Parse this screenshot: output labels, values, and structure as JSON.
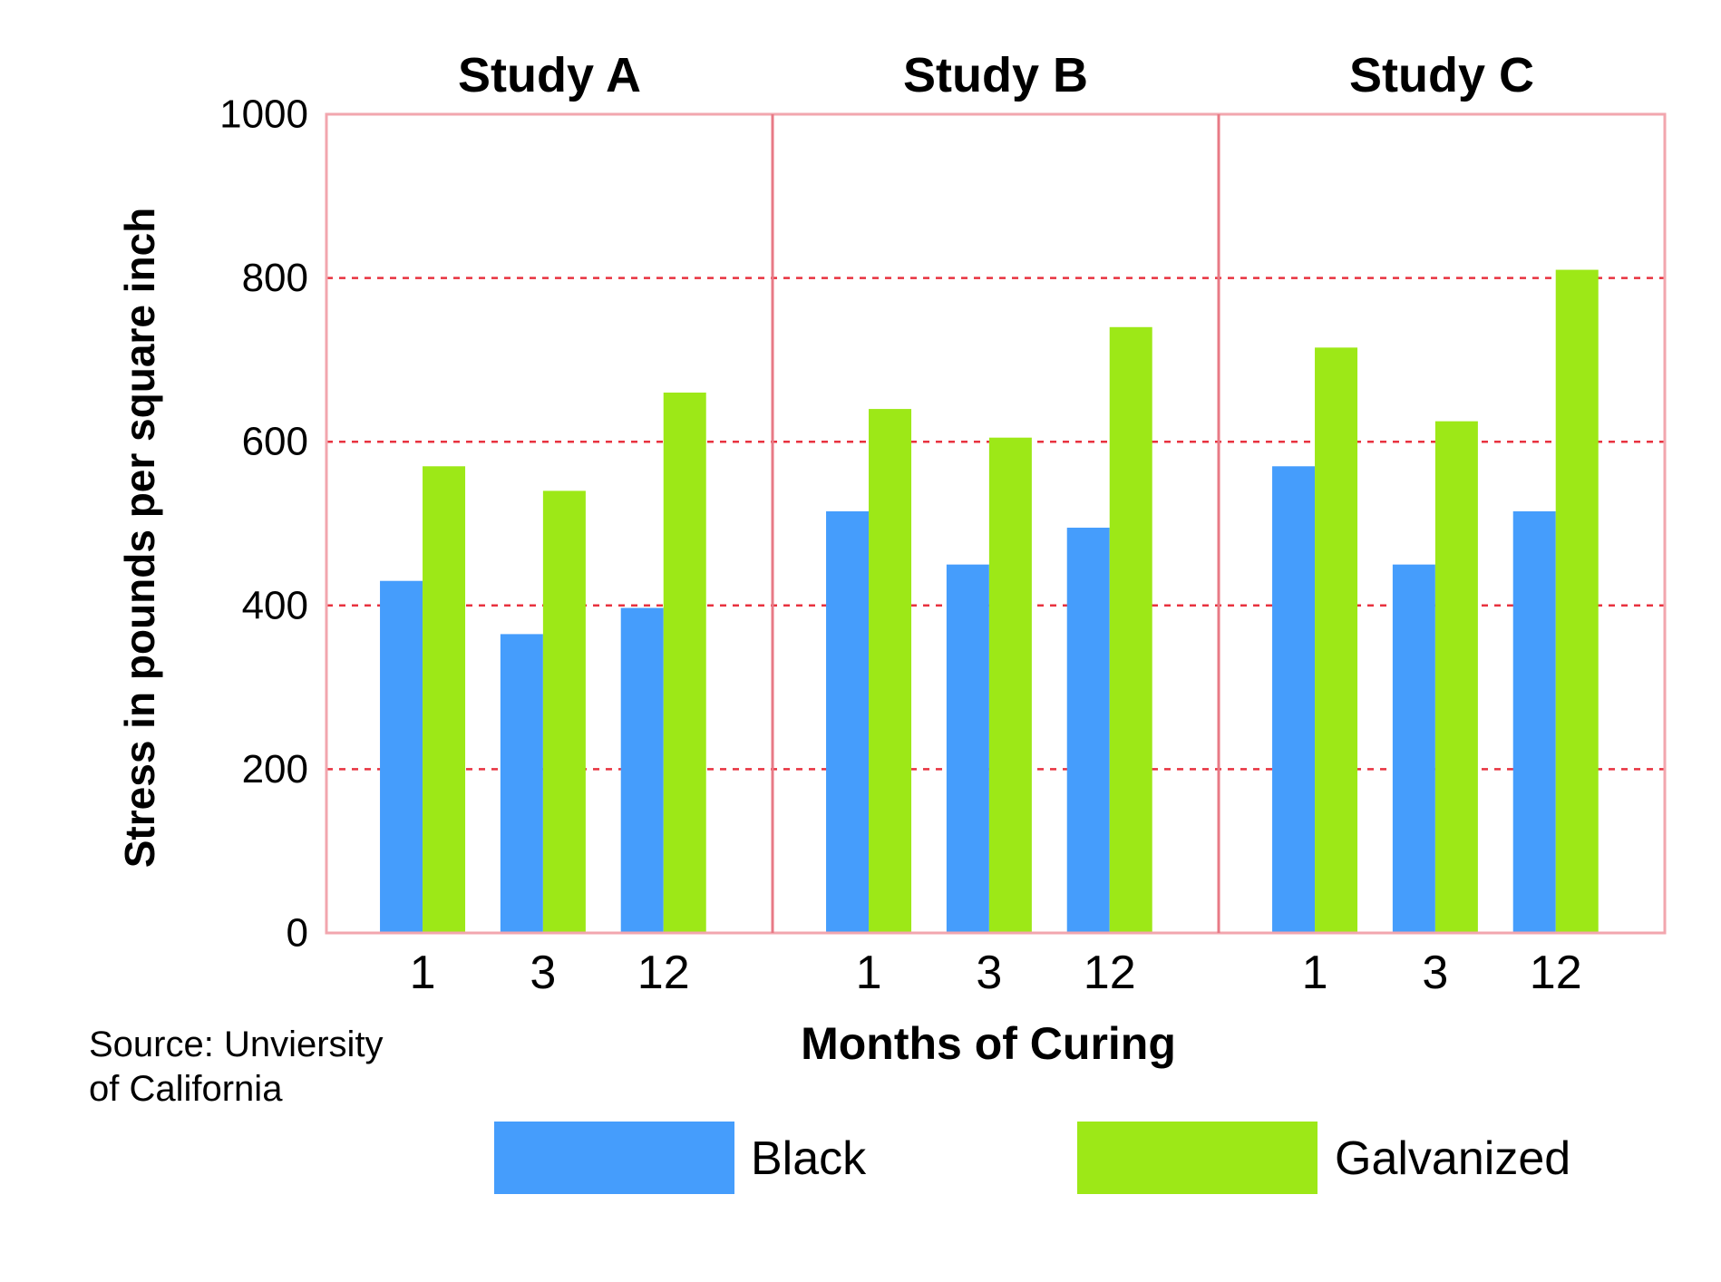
{
  "chart_data": {
    "type": "bar",
    "panels": [
      {
        "title": "Study A",
        "categories": [
          "1",
          "3",
          "12"
        ],
        "series": [
          {
            "name": "Black",
            "values": [
              430,
              365,
              397
            ]
          },
          {
            "name": "Galvanized",
            "values": [
              570,
              540,
              660
            ]
          }
        ]
      },
      {
        "title": "Study B",
        "categories": [
          "1",
          "3",
          "12"
        ],
        "series": [
          {
            "name": "Black",
            "values": [
              515,
              450,
              495
            ]
          },
          {
            "name": "Galvanized",
            "values": [
              640,
              605,
              740
            ]
          }
        ]
      },
      {
        "title": "Study C",
        "categories": [
          "1",
          "3",
          "12"
        ],
        "series": [
          {
            "name": "Black",
            "values": [
              570,
              450,
              515
            ]
          },
          {
            "name": "Galvanized",
            "values": [
              715,
              625,
              810
            ]
          }
        ]
      }
    ],
    "xlabel": "Months of Curing",
    "ylabel": "Stress in pounds per square inch",
    "ylim": [
      0,
      1000
    ],
    "yticks": [
      "0",
      "200",
      "400",
      "600",
      "800",
      "1000"
    ],
    "grid": true,
    "legend_position": "bottom",
    "source_text": [
      "Source: Unviersity",
      "of California"
    ],
    "colors": {
      "Black": "#459dfc",
      "Galvanized": "#9de817",
      "frame": "#f2a6ae",
      "divider": "#e87a86",
      "gridline": "#e8323f"
    }
  }
}
